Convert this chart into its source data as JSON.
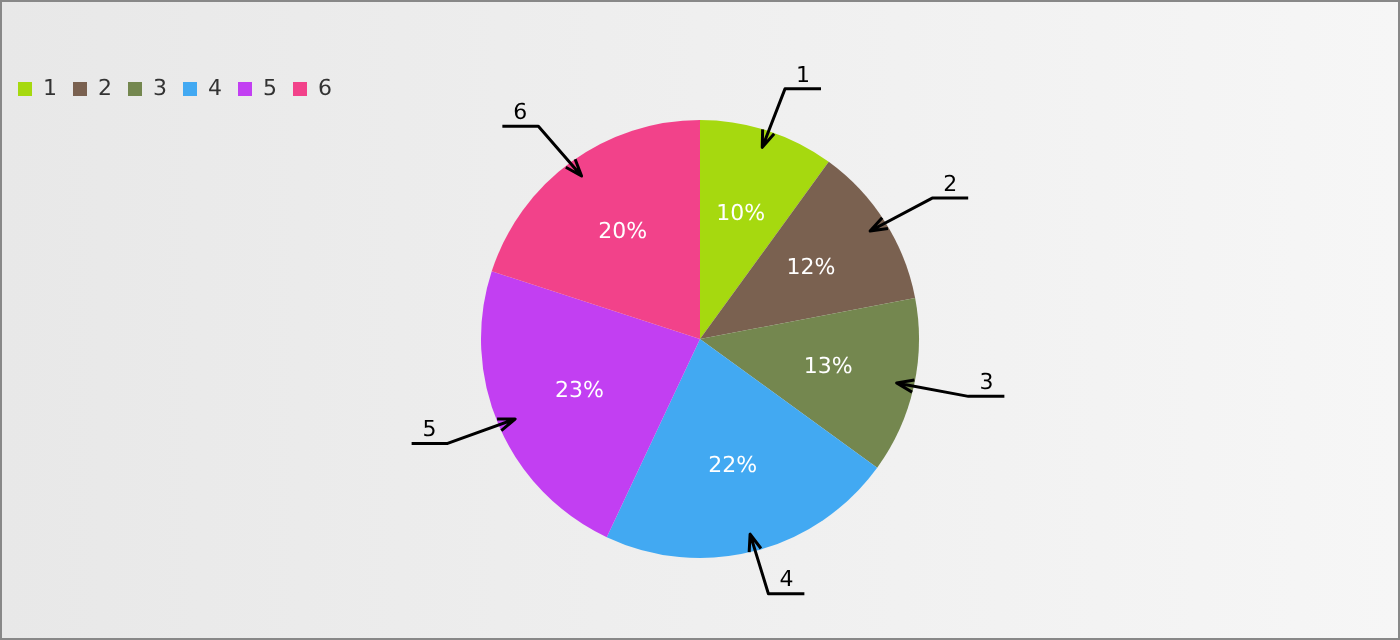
{
  "chart_data": {
    "type": "pie",
    "categories": [
      "1",
      "2",
      "3",
      "4",
      "5",
      "6"
    ],
    "values": [
      10,
      12,
      13,
      22,
      23,
      20
    ],
    "colors": [
      "#a6d90f",
      "#7a6150",
      "#74874f",
      "#42a9f2",
      "#c23ff2",
      "#f2428a"
    ],
    "value_labels": [
      "10%",
      "12%",
      "13%",
      "22%",
      "23%",
      "20%"
    ],
    "legend": "top left"
  }
}
